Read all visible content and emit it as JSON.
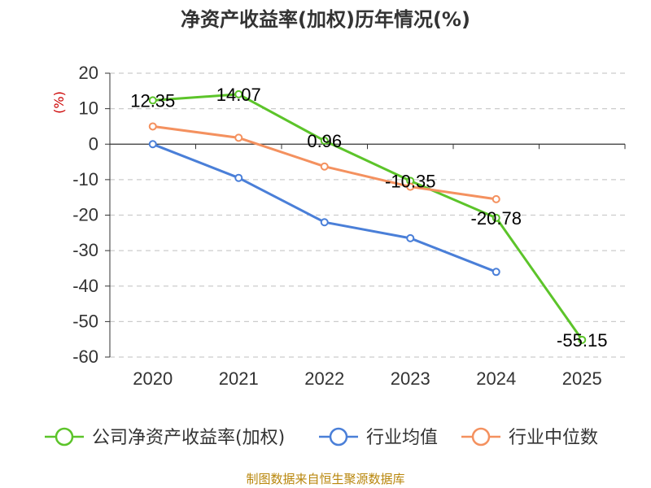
{
  "chart_data": {
    "type": "line",
    "title": "净资产收益率(加权)历年情况(%)",
    "ylabel": "(%)",
    "xlabel": "",
    "categories": [
      "2020",
      "2021",
      "2022",
      "2023",
      "2024",
      "2025"
    ],
    "ylim": [
      -60,
      20
    ],
    "yticks": [
      20,
      10,
      0,
      -10,
      -20,
      -30,
      -40,
      -50,
      -60
    ],
    "grid": true,
    "legend_position": "bottom",
    "series": [
      {
        "name": "公司净资产收益率(加权)",
        "color": "#5cc42a",
        "values": [
          12.35,
          14.07,
          0.96,
          -10.35,
          -20.78,
          -55.15
        ],
        "labels": [
          "12.35",
          "14.07",
          "0.96",
          "-10.35",
          "-20.78",
          "-55.15"
        ]
      },
      {
        "name": "行业均值",
        "color": "#4a7fd8",
        "values": [
          0,
          -9.5,
          -22,
          -26.5,
          -36,
          null
        ]
      },
      {
        "name": "行业中位数",
        "color": "#f4915f",
        "values": [
          5,
          1.8,
          -6.3,
          -12,
          -15.5,
          null
        ]
      }
    ],
    "source": "制图数据来自恒生聚源数据库"
  }
}
